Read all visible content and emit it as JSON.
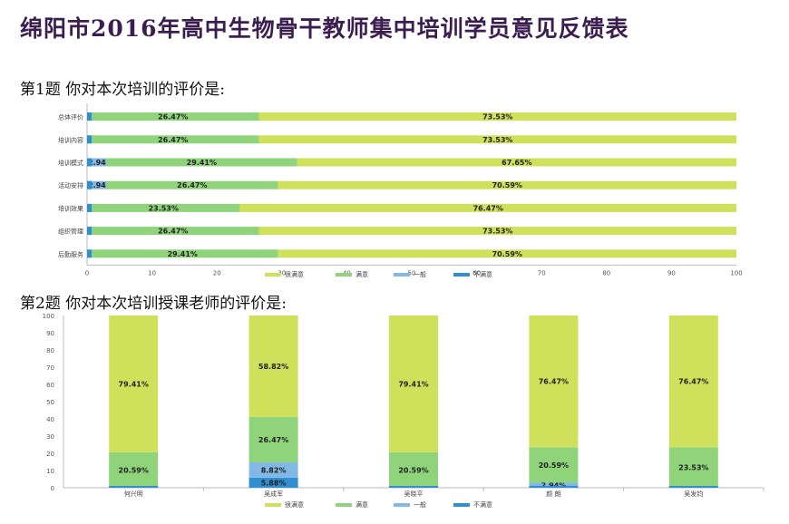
{
  "page": {
    "title": "绵阳市2016年高中生物骨干教师集中培训学员意见反馈表",
    "q1_label": "第1题  你对本次培训的评价是:",
    "q2_label": "第2题  你对本次培训授课老师的评价是:"
  },
  "colors": {
    "very_satisfied": "#cfe05a",
    "satisfied": "#8fd47a",
    "average": "#82b8e6",
    "unsatisfied": "#2f8fd0"
  },
  "chart_data": [
    {
      "type": "bar",
      "orientation": "horizontal",
      "stacked": true,
      "categories": [
        "总体评价",
        "培训内容",
        "培训模式",
        "活动安排",
        "培训效果",
        "组织管理",
        "后勤服务"
      ],
      "series": [
        {
          "name": "很满意",
          "values": [
            73.53,
            73.53,
            67.65,
            70.59,
            76.47,
            73.53,
            70.59
          ],
          "labels": [
            "73.53%",
            "73.53%",
            "67.65%",
            "70.59%",
            "76.47%",
            "73.53%",
            "70.59%"
          ]
        },
        {
          "name": "满意",
          "values": [
            26.47,
            26.47,
            29.41,
            26.47,
            23.53,
            26.47,
            29.41
          ],
          "labels": [
            "26.47%",
            "26.47%",
            "29.41%",
            "26.47%",
            "23.53%",
            "26.47%",
            "29.41%"
          ]
        },
        {
          "name": "一般",
          "values": [
            0,
            0,
            2.94,
            2.94,
            0,
            0,
            0
          ],
          "labels": [
            "",
            "",
            "2.94%",
            "2.94%",
            "",
            "",
            ""
          ]
        },
        {
          "name": "不满意",
          "values": [
            0,
            0,
            0,
            0,
            0,
            0,
            0
          ],
          "labels": [
            "",
            "",
            "",
            "",
            "",
            "",
            ""
          ]
        }
      ],
      "xlim": [
        0,
        100
      ],
      "xticks": [
        "0",
        "10",
        "20",
        "30",
        "40",
        "50",
        "60",
        "70",
        "80",
        "90",
        "100"
      ],
      "legend": "bottom"
    },
    {
      "type": "bar",
      "orientation": "vertical",
      "stacked": true,
      "categories": [
        "何兴明",
        "吴成军",
        "吴晓平",
        "颜 朗",
        "吴发钧"
      ],
      "series": [
        {
          "name": "很满意",
          "values": [
            79.41,
            58.82,
            79.41,
            76.47,
            76.47
          ],
          "labels": [
            "79.41%",
            "58.82%",
            "79.41%",
            "76.47%",
            "76.47%"
          ]
        },
        {
          "name": "满意",
          "values": [
            20.59,
            26.47,
            20.59,
            20.59,
            23.53
          ],
          "labels": [
            "20.59%",
            "26.47%",
            "20.59%",
            "20.59%",
            "23.53%"
          ]
        },
        {
          "name": "一般",
          "values": [
            0,
            8.82,
            0,
            2.94,
            0
          ],
          "labels": [
            "",
            "8.82%",
            "",
            "2.94%",
            ""
          ]
        },
        {
          "name": "不满意",
          "values": [
            0,
            5.88,
            0,
            0,
            0
          ],
          "labels": [
            "",
            "5.88%",
            "",
            "",
            ""
          ]
        }
      ],
      "ylim": [
        0,
        100
      ],
      "yticks": [
        "0",
        "10",
        "20",
        "30",
        "40",
        "50",
        "60",
        "70",
        "80",
        "90",
        "100"
      ],
      "legend": "bottom"
    }
  ]
}
